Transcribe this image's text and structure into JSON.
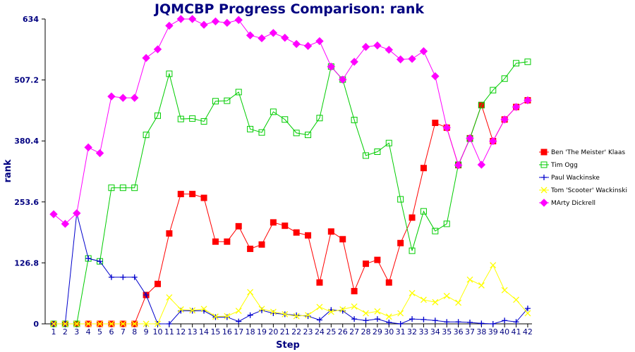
{
  "chart_data": {
    "type": "line",
    "title": "JQMCBP Progress Comparison: rank",
    "xlabel": "Step",
    "ylabel": "rank",
    "x": [
      1,
      2,
      3,
      4,
      5,
      6,
      7,
      8,
      9,
      10,
      11,
      12,
      13,
      14,
      15,
      16,
      17,
      18,
      19,
      20,
      21,
      22,
      23,
      24,
      25,
      26,
      27,
      28,
      29,
      30,
      31,
      32,
      33,
      34,
      35,
      36,
      37,
      38,
      39,
      40,
      41,
      42
    ],
    "ylim": [
      0,
      634
    ],
    "yticks": [
      "0",
      "126.8",
      "253.6",
      "380.4",
      "507.2",
      "634"
    ],
    "grid": false,
    "legend_position": "right",
    "series": [
      {
        "name": "Ben 'The Meister' Klaas",
        "color": "#ff0000",
        "marker": "square-filled",
        "values": [
          0,
          0,
          0,
          0,
          0,
          0,
          0,
          0,
          60,
          83,
          188,
          270,
          270,
          262,
          171,
          171,
          203,
          156,
          165,
          211,
          204,
          190,
          184,
          86,
          192,
          176,
          68,
          125,
          133,
          86,
          168,
          221,
          324,
          418,
          408,
          330,
          386,
          455,
          380,
          425,
          451,
          465
        ]
      },
      {
        "name": "Tim Ogg",
        "color": "#00cc00",
        "marker": "square-open",
        "values": [
          0,
          0,
          0,
          136,
          130,
          283,
          283,
          283,
          393,
          433,
          520,
          426,
          427,
          421,
          463,
          464,
          482,
          405,
          398,
          441,
          425,
          397,
          393,
          428,
          535,
          508,
          424,
          350,
          358,
          376,
          259,
          152,
          234,
          193,
          208,
          331,
          385,
          455,
          486,
          510,
          542,
          545
        ]
      },
      {
        "name": "Paul Wackinske",
        "color": "#0000cc",
        "marker": "plus",
        "values": [
          0,
          0,
          230,
          136,
          130,
          97,
          97,
          97,
          60,
          0,
          0,
          27,
          27,
          27,
          14,
          14,
          5,
          18,
          28,
          22,
          20,
          18,
          16,
          8,
          29,
          27,
          10,
          7,
          10,
          3,
          0,
          10,
          9,
          7,
          4,
          4,
          3,
          1,
          0,
          7,
          4,
          32
        ]
      },
      {
        "name": "Tom 'Scooter' Wackinski",
        "color": "#ffff00",
        "marker": "cross",
        "values": [
          0,
          0,
          0,
          0,
          0,
          0,
          0,
          0,
          0,
          0,
          55,
          30,
          28,
          31,
          15,
          16,
          27,
          66,
          31,
          25,
          20,
          16,
          18,
          35,
          25,
          30,
          36,
          22,
          26,
          15,
          22,
          64,
          50,
          45,
          58,
          44,
          92,
          80,
          122,
          70,
          50,
          22
        ]
      },
      {
        "name": "MArty Dickrell",
        "color": "#ff00ff",
        "marker": "diamond",
        "values": [
          228,
          208,
          230,
          367,
          355,
          473,
          470,
          470,
          553,
          571,
          620,
          634,
          634,
          622,
          629,
          626,
          632,
          600,
          594,
          605,
          595,
          582,
          578,
          588,
          535,
          508,
          545,
          576,
          579,
          570,
          550,
          551,
          567,
          515,
          408,
          330,
          386,
          331,
          380,
          425,
          451,
          465
        ]
      }
    ]
  }
}
